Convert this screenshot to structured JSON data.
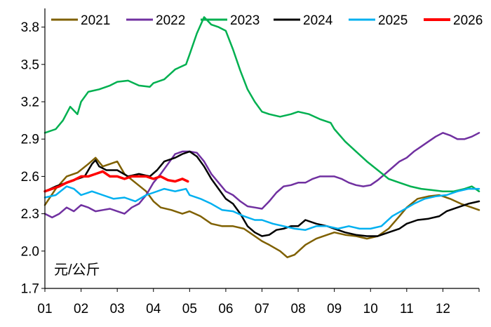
{
  "chart_data": {
    "type": "line",
    "unit_label": "元/公斤",
    "x_ticks": [
      "01",
      "02",
      "03",
      "04",
      "05",
      "06",
      "07",
      "08",
      "09",
      "10",
      "11",
      "12"
    ],
    "y_ticks": [
      1.7,
      2.0,
      2.3,
      2.6,
      2.9,
      3.2,
      3.5,
      3.8
    ],
    "ylim": [
      1.7,
      3.95
    ],
    "xlim": [
      1,
      13
    ],
    "grid": false,
    "legend_position": "top",
    "series": [
      {
        "name": "2021",
        "color": "#7f6000",
        "width": 2.5,
        "points": [
          [
            1.0,
            2.37
          ],
          [
            1.3,
            2.5
          ],
          [
            1.6,
            2.6
          ],
          [
            1.9,
            2.63
          ],
          [
            2.2,
            2.7
          ],
          [
            2.4,
            2.75
          ],
          [
            2.6,
            2.68
          ],
          [
            2.8,
            2.7
          ],
          [
            3.0,
            2.72
          ],
          [
            3.2,
            2.62
          ],
          [
            3.5,
            2.55
          ],
          [
            3.8,
            2.48
          ],
          [
            4.0,
            2.4
          ],
          [
            4.2,
            2.35
          ],
          [
            4.5,
            2.33
          ],
          [
            4.8,
            2.3
          ],
          [
            5.0,
            2.32
          ],
          [
            5.3,
            2.28
          ],
          [
            5.6,
            2.22
          ],
          [
            5.9,
            2.2
          ],
          [
            6.2,
            2.2
          ],
          [
            6.5,
            2.18
          ],
          [
            6.8,
            2.12
          ],
          [
            7.0,
            2.08
          ],
          [
            7.2,
            2.05
          ],
          [
            7.5,
            2.0
          ],
          [
            7.7,
            1.95
          ],
          [
            7.9,
            1.97
          ],
          [
            8.2,
            2.05
          ],
          [
            8.5,
            2.1
          ],
          [
            8.8,
            2.13
          ],
          [
            9.0,
            2.15
          ],
          [
            9.3,
            2.13
          ],
          [
            9.6,
            2.12
          ],
          [
            9.9,
            2.1
          ],
          [
            10.2,
            2.12
          ],
          [
            10.5,
            2.18
          ],
          [
            10.8,
            2.28
          ],
          [
            11.0,
            2.35
          ],
          [
            11.3,
            2.42
          ],
          [
            11.6,
            2.44
          ],
          [
            11.9,
            2.45
          ],
          [
            12.2,
            2.42
          ],
          [
            12.5,
            2.38
          ],
          [
            12.8,
            2.35
          ],
          [
            13.0,
            2.33
          ]
        ]
      },
      {
        "name": "2022",
        "color": "#7030a0",
        "width": 2.5,
        "points": [
          [
            1.0,
            2.3
          ],
          [
            1.2,
            2.27
          ],
          [
            1.4,
            2.3
          ],
          [
            1.6,
            2.35
          ],
          [
            1.8,
            2.32
          ],
          [
            2.0,
            2.37
          ],
          [
            2.2,
            2.35
          ],
          [
            2.4,
            2.32
          ],
          [
            2.6,
            2.33
          ],
          [
            2.8,
            2.34
          ],
          [
            3.0,
            2.32
          ],
          [
            3.2,
            2.3
          ],
          [
            3.4,
            2.35
          ],
          [
            3.6,
            2.38
          ],
          [
            3.8,
            2.45
          ],
          [
            4.0,
            2.55
          ],
          [
            4.2,
            2.62
          ],
          [
            4.4,
            2.7
          ],
          [
            4.6,
            2.78
          ],
          [
            4.8,
            2.8
          ],
          [
            5.0,
            2.8
          ],
          [
            5.2,
            2.79
          ],
          [
            5.4,
            2.72
          ],
          [
            5.6,
            2.62
          ],
          [
            5.8,
            2.55
          ],
          [
            6.0,
            2.48
          ],
          [
            6.2,
            2.45
          ],
          [
            6.4,
            2.4
          ],
          [
            6.6,
            2.36
          ],
          [
            6.8,
            2.35
          ],
          [
            7.0,
            2.34
          ],
          [
            7.2,
            2.4
          ],
          [
            7.4,
            2.47
          ],
          [
            7.6,
            2.52
          ],
          [
            7.8,
            2.53
          ],
          [
            8.0,
            2.55
          ],
          [
            8.2,
            2.55
          ],
          [
            8.4,
            2.58
          ],
          [
            8.6,
            2.6
          ],
          [
            8.8,
            2.6
          ],
          [
            9.0,
            2.6
          ],
          [
            9.2,
            2.58
          ],
          [
            9.4,
            2.55
          ],
          [
            9.6,
            2.53
          ],
          [
            9.8,
            2.52
          ],
          [
            10.0,
            2.53
          ],
          [
            10.2,
            2.57
          ],
          [
            10.4,
            2.62
          ],
          [
            10.6,
            2.67
          ],
          [
            10.8,
            2.72
          ],
          [
            11.0,
            2.75
          ],
          [
            11.2,
            2.8
          ],
          [
            11.4,
            2.84
          ],
          [
            11.6,
            2.88
          ],
          [
            11.8,
            2.92
          ],
          [
            12.0,
            2.95
          ],
          [
            12.2,
            2.93
          ],
          [
            12.4,
            2.9
          ],
          [
            12.6,
            2.9
          ],
          [
            12.8,
            2.92
          ],
          [
            13.0,
            2.95
          ]
        ]
      },
      {
        "name": "2023",
        "color": "#00b050",
        "width": 2.5,
        "points": [
          [
            1.0,
            2.95
          ],
          [
            1.3,
            2.98
          ],
          [
            1.5,
            3.05
          ],
          [
            1.7,
            3.16
          ],
          [
            1.9,
            3.1
          ],
          [
            2.0,
            3.2
          ],
          [
            2.2,
            3.28
          ],
          [
            2.5,
            3.3
          ],
          [
            2.8,
            3.33
          ],
          [
            3.0,
            3.36
          ],
          [
            3.3,
            3.37
          ],
          [
            3.6,
            3.33
          ],
          [
            3.9,
            3.32
          ],
          [
            4.0,
            3.35
          ],
          [
            4.3,
            3.38
          ],
          [
            4.6,
            3.46
          ],
          [
            4.9,
            3.5
          ],
          [
            5.0,
            3.58
          ],
          [
            5.2,
            3.75
          ],
          [
            5.4,
            3.88
          ],
          [
            5.6,
            3.82
          ],
          [
            5.8,
            3.8
          ],
          [
            6.0,
            3.77
          ],
          [
            6.2,
            3.62
          ],
          [
            6.4,
            3.45
          ],
          [
            6.6,
            3.3
          ],
          [
            6.8,
            3.2
          ],
          [
            7.0,
            3.12
          ],
          [
            7.2,
            3.1
          ],
          [
            7.5,
            3.08
          ],
          [
            7.8,
            3.1
          ],
          [
            8.0,
            3.12
          ],
          [
            8.3,
            3.1
          ],
          [
            8.6,
            3.06
          ],
          [
            8.9,
            3.03
          ],
          [
            9.0,
            2.98
          ],
          [
            9.3,
            2.88
          ],
          [
            9.6,
            2.8
          ],
          [
            9.9,
            2.72
          ],
          [
            10.2,
            2.65
          ],
          [
            10.5,
            2.58
          ],
          [
            10.8,
            2.55
          ],
          [
            11.1,
            2.52
          ],
          [
            11.4,
            2.5
          ],
          [
            11.7,
            2.49
          ],
          [
            12.0,
            2.48
          ],
          [
            12.3,
            2.48
          ],
          [
            12.6,
            2.5
          ],
          [
            12.8,
            2.52
          ],
          [
            13.0,
            2.48
          ]
        ]
      },
      {
        "name": "2024",
        "color": "#000000",
        "width": 2.5,
        "points": [
          [
            1.0,
            2.48
          ],
          [
            1.3,
            2.52
          ],
          [
            1.6,
            2.55
          ],
          [
            1.9,
            2.58
          ],
          [
            2.1,
            2.6
          ],
          [
            2.3,
            2.7
          ],
          [
            2.4,
            2.73
          ],
          [
            2.5,
            2.68
          ],
          [
            2.7,
            2.65
          ],
          [
            3.0,
            2.65
          ],
          [
            3.3,
            2.6
          ],
          [
            3.6,
            2.62
          ],
          [
            3.9,
            2.6
          ],
          [
            4.1,
            2.65
          ],
          [
            4.3,
            2.72
          ],
          [
            4.6,
            2.75
          ],
          [
            4.8,
            2.78
          ],
          [
            5.0,
            2.8
          ],
          [
            5.2,
            2.76
          ],
          [
            5.4,
            2.68
          ],
          [
            5.6,
            2.58
          ],
          [
            5.8,
            2.5
          ],
          [
            6.0,
            2.42
          ],
          [
            6.2,
            2.38
          ],
          [
            6.4,
            2.3
          ],
          [
            6.6,
            2.2
          ],
          [
            6.8,
            2.15
          ],
          [
            7.0,
            2.12
          ],
          [
            7.2,
            2.13
          ],
          [
            7.4,
            2.17
          ],
          [
            7.6,
            2.18
          ],
          [
            7.8,
            2.2
          ],
          [
            8.0,
            2.2
          ],
          [
            8.2,
            2.25
          ],
          [
            8.5,
            2.22
          ],
          [
            8.8,
            2.2
          ],
          [
            9.0,
            2.18
          ],
          [
            9.3,
            2.15
          ],
          [
            9.6,
            2.13
          ],
          [
            9.9,
            2.12
          ],
          [
            10.2,
            2.12
          ],
          [
            10.5,
            2.15
          ],
          [
            10.8,
            2.18
          ],
          [
            11.0,
            2.22
          ],
          [
            11.3,
            2.25
          ],
          [
            11.6,
            2.26
          ],
          [
            11.9,
            2.28
          ],
          [
            12.1,
            2.32
          ],
          [
            12.4,
            2.35
          ],
          [
            12.7,
            2.38
          ],
          [
            13.0,
            2.4
          ]
        ]
      },
      {
        "name": "2025",
        "color": "#00b0f0",
        "width": 2.5,
        "points": [
          [
            1.0,
            2.43
          ],
          [
            1.3,
            2.45
          ],
          [
            1.6,
            2.52
          ],
          [
            1.8,
            2.5
          ],
          [
            2.0,
            2.45
          ],
          [
            2.3,
            2.48
          ],
          [
            2.6,
            2.45
          ],
          [
            2.9,
            2.42
          ],
          [
            3.2,
            2.43
          ],
          [
            3.5,
            2.4
          ],
          [
            3.8,
            2.45
          ],
          [
            4.0,
            2.47
          ],
          [
            4.3,
            2.5
          ],
          [
            4.6,
            2.48
          ],
          [
            4.9,
            2.5
          ],
          [
            5.0,
            2.45
          ],
          [
            5.3,
            2.42
          ],
          [
            5.6,
            2.38
          ],
          [
            5.9,
            2.33
          ],
          [
            6.2,
            2.32
          ],
          [
            6.5,
            2.28
          ],
          [
            6.8,
            2.25
          ],
          [
            7.0,
            2.25
          ],
          [
            7.3,
            2.22
          ],
          [
            7.6,
            2.2
          ],
          [
            7.9,
            2.18
          ],
          [
            8.2,
            2.17
          ],
          [
            8.5,
            2.2
          ],
          [
            8.8,
            2.2
          ],
          [
            9.1,
            2.18
          ],
          [
            9.4,
            2.2
          ],
          [
            9.7,
            2.18
          ],
          [
            10.0,
            2.18
          ],
          [
            10.3,
            2.2
          ],
          [
            10.6,
            2.28
          ],
          [
            10.9,
            2.33
          ],
          [
            11.2,
            2.38
          ],
          [
            11.5,
            2.42
          ],
          [
            11.8,
            2.44
          ],
          [
            12.1,
            2.45
          ],
          [
            12.4,
            2.48
          ],
          [
            12.7,
            2.5
          ],
          [
            13.0,
            2.5
          ]
        ]
      },
      {
        "name": "2026",
        "color": "#ff0000",
        "width": 3.5,
        "points": [
          [
            1.0,
            2.48
          ],
          [
            1.2,
            2.5
          ],
          [
            1.4,
            2.52
          ],
          [
            1.6,
            2.55
          ],
          [
            1.8,
            2.57
          ],
          [
            2.0,
            2.6
          ],
          [
            2.2,
            2.6
          ],
          [
            2.4,
            2.62
          ],
          [
            2.6,
            2.64
          ],
          [
            2.8,
            2.6
          ],
          [
            3.0,
            2.6
          ],
          [
            3.2,
            2.58
          ],
          [
            3.4,
            2.6
          ],
          [
            3.6,
            2.6
          ],
          [
            3.8,
            2.6
          ],
          [
            4.0,
            2.58
          ],
          [
            4.2,
            2.6
          ],
          [
            4.4,
            2.57
          ],
          [
            4.6,
            2.56
          ],
          [
            4.8,
            2.58
          ],
          [
            4.95,
            2.56
          ]
        ]
      }
    ]
  }
}
